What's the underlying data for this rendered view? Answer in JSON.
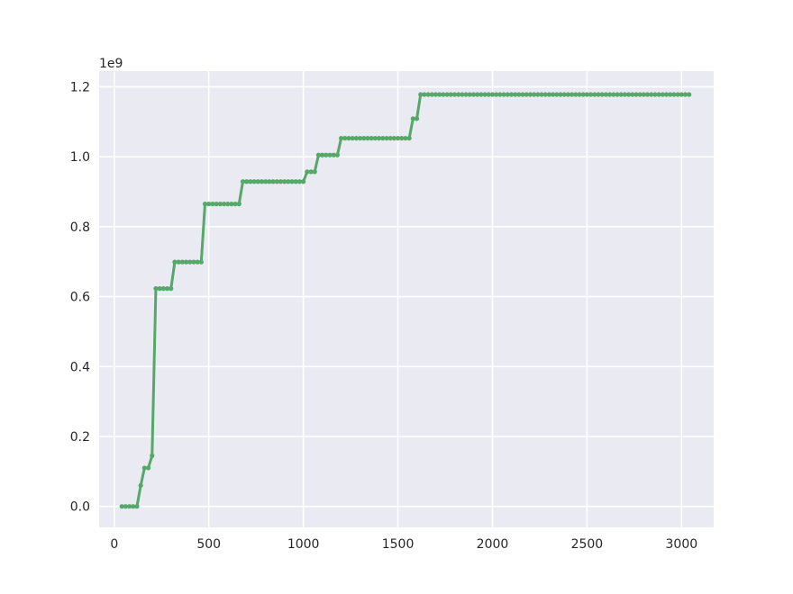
{
  "chart_data": {
    "type": "line",
    "title": "",
    "xlabel": "",
    "ylabel": "",
    "y_offset_label": "1e9",
    "xlim": [
      -80,
      3170
    ],
    "ylim": [
      -0.06,
      1.245
    ],
    "xticks": [
      0,
      500,
      1000,
      1500,
      2000,
      2500,
      3000
    ],
    "xtick_labels": [
      "0",
      "500",
      "1000",
      "1500",
      "2000",
      "2500",
      "3000"
    ],
    "yticks": [
      0.0,
      0.2,
      0.4,
      0.6,
      0.8,
      1.0,
      1.2
    ],
    "ytick_labels": [
      "0.0",
      "0.2",
      "0.4",
      "0.6",
      "0.8",
      "1.0",
      "1.2"
    ],
    "grid": true,
    "background_color": "#eaeaf2",
    "grid_color": "#ffffff",
    "series_color": "#55a868",
    "marker_step": 20,
    "x_start": 40,
    "x_end": 3040,
    "series": [
      {
        "steps": [
          [
            40,
            0.0
          ],
          [
            120,
            0.0
          ],
          [
            140,
            0.06
          ],
          [
            160,
            0.11
          ],
          [
            180,
            0.11
          ],
          [
            200,
            0.145
          ],
          [
            220,
            0.623
          ],
          [
            300,
            0.623
          ],
          [
            320,
            0.699
          ],
          [
            460,
            0.699
          ],
          [
            480,
            0.865
          ],
          [
            660,
            0.865
          ],
          [
            680,
            0.929
          ],
          [
            1000,
            0.929
          ],
          [
            1020,
            0.957
          ],
          [
            1060,
            0.957
          ],
          [
            1080,
            1.005
          ],
          [
            1180,
            1.005
          ],
          [
            1200,
            1.053
          ],
          [
            1560,
            1.053
          ],
          [
            1580,
            1.109
          ],
          [
            1600,
            1.109
          ],
          [
            1620,
            1.178
          ],
          [
            3040,
            1.178
          ]
        ]
      }
    ]
  }
}
